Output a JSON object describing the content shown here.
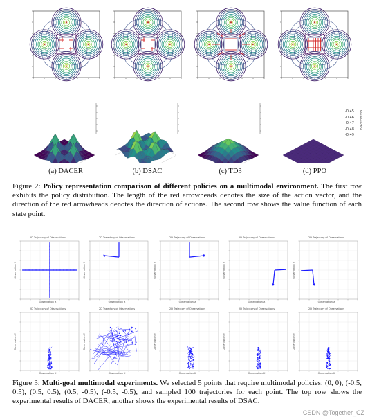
{
  "figure2": {
    "subcaptions": [
      "(a) DACER",
      "(b) DSAC",
      "(c) TD3",
      "(d) PPO"
    ],
    "label": "Figure 2:",
    "bold_text": "Policy representation comparison of different policies on a multimodal environment.",
    "body_text": "The first row exhibits the policy distribution. The length of the red arrowheads denotes the size of the action vector, and the direction of the red arrowheads denotes the direction of actions. The second row shows the value function of each state point.",
    "ppo_ticks": [
      "-0.45",
      "-0.46",
      "-0.47",
      "-0.48",
      "-0.49"
    ],
    "ppo_axis_label": "Value Function"
  },
  "figure3": {
    "subplot_title": "2D Trajectory of Observations",
    "xlabel": "Observation X",
    "ylabel": "Observation Y",
    "label": "Figure 3:",
    "bold_text": "Multi-goal multimodal experiments.",
    "body_text": "We selected 5 points that require multimodal policies: (0, 0), (-0.5, 0.5), (0.5, 0.5), (0.5, -0.5), (-0.5, -0.5), and sampled 100 trajectories for each point. The top row shows the experimental results of DACER, another shows the experimental results of DSAC."
  },
  "watermark": "CSDN @Together_CZ",
  "colors": {
    "trajectory": "#1a1aff",
    "arrow": "#d62728",
    "contour_center": "#fde725",
    "contour_outer": "#440154"
  }
}
